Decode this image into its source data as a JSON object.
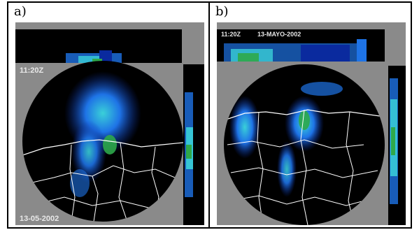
{
  "panels": [
    {
      "label": "a)",
      "time": "11:20Z",
      "date": "13-05-2002"
    },
    {
      "label": "b)",
      "time": "11:20Z",
      "date": "13-MAYO-2002"
    }
  ],
  "colors": {
    "background": "#8a8a8a",
    "radar_disc": "#000000",
    "echo_low": "#0a2a9e",
    "echo_mid": "#1e73e6",
    "echo_high": "#3ad0d8",
    "echo_peak": "#2ea84a",
    "border_lines": "#ffffff"
  }
}
